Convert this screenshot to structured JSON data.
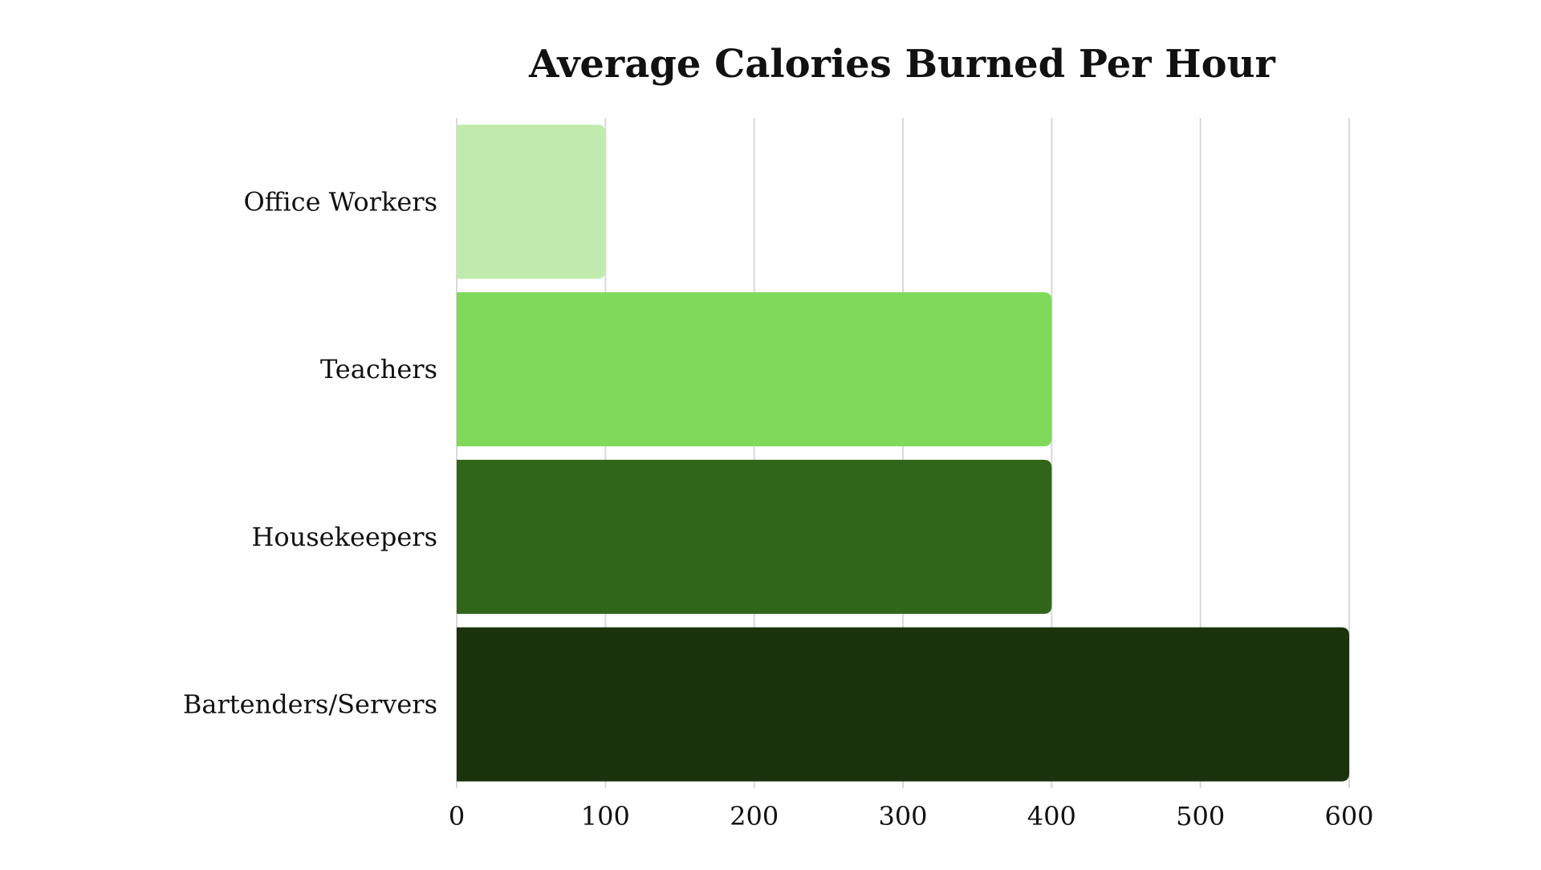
{
  "chart_data": {
    "type": "bar",
    "orientation": "horizontal",
    "title": "Average Calories Burned Per Hour",
    "xlabel": "",
    "ylabel": "",
    "categories": [
      "Office Workers",
      "Teachers",
      "Housekeepers",
      "Bartenders/Servers"
    ],
    "values": [
      100,
      400,
      400,
      600
    ],
    "colors": [
      "#c1ebae",
      "#80d95b",
      "#31651a",
      "#1a330c"
    ],
    "xlim": [
      0,
      600
    ],
    "xticks": [
      0,
      100,
      200,
      300,
      400,
      500,
      600
    ],
    "grid": true,
    "gridline_color": "#d9d9d9",
    "legend": "none"
  }
}
